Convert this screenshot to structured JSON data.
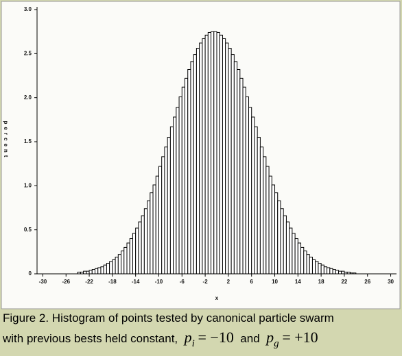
{
  "chart_data": {
    "type": "histogram",
    "xlabel": "x",
    "ylabel": "percent",
    "bins": [
      -24,
      -23.5,
      -23,
      -22.5,
      -22,
      -21.5,
      -21,
      -20.5,
      -20,
      -19.5,
      -19,
      -18.5,
      -18,
      -17.5,
      -17,
      -16.5,
      -16,
      -15.5,
      -15,
      -14.5,
      -14,
      -13.5,
      -13,
      -12.5,
      -12,
      -11.5,
      -11,
      -10.5,
      -10,
      -9.5,
      -9,
      -8.5,
      -8,
      -7.5,
      -7,
      -6.5,
      -6,
      -5.5,
      -5,
      -4.5,
      -4,
      -3.5,
      -3,
      -2.5,
      -2,
      -1.5,
      -1,
      -0.5,
      0,
      0.5,
      1,
      1.5,
      2,
      2.5,
      3,
      3.5,
      4,
      4.5,
      5,
      5.5,
      6,
      6.5,
      7,
      7.5,
      8,
      8.5,
      9,
      9.5,
      10,
      10.5,
      11,
      11.5,
      12,
      12.5,
      13,
      13.5,
      14,
      14.5,
      15,
      15.5,
      16,
      16.5,
      17,
      17.5,
      18,
      18.5,
      19,
      19.5,
      20,
      20.5,
      21,
      21.5,
      22,
      22.5,
      23,
      23.5,
      24
    ],
    "values": [
      0.02,
      0.02,
      0.03,
      0.03,
      0.04,
      0.05,
      0.06,
      0.07,
      0.08,
      0.1,
      0.12,
      0.14,
      0.16,
      0.19,
      0.22,
      0.26,
      0.3,
      0.35,
      0.4,
      0.46,
      0.52,
      0.59,
      0.66,
      0.74,
      0.83,
      0.92,
      1.01,
      1.11,
      1.22,
      1.33,
      1.44,
      1.55,
      1.67,
      1.78,
      1.89,
      2.01,
      2.12,
      2.22,
      2.32,
      2.41,
      2.49,
      2.56,
      2.62,
      2.67,
      2.71,
      2.74,
      2.75,
      2.75,
      2.74,
      2.71,
      2.67,
      2.62,
      2.56,
      2.49,
      2.41,
      2.32,
      2.22,
      2.12,
      2.01,
      1.89,
      1.78,
      1.67,
      1.55,
      1.44,
      1.33,
      1.22,
      1.11,
      1.01,
      0.92,
      0.83,
      0.74,
      0.66,
      0.59,
      0.52,
      0.46,
      0.4,
      0.35,
      0.3,
      0.26,
      0.22,
      0.19,
      0.16,
      0.14,
      0.12,
      0.1,
      0.08,
      0.07,
      0.06,
      0.05,
      0.04,
      0.03,
      0.03,
      0.02,
      0.02,
      0.01,
      0.01
    ],
    "color": "#ffffff",
    "xlim": [
      -31,
      31
    ],
    "xticks": [
      -30,
      -26,
      -22,
      -18,
      -14,
      -10,
      -6,
      -2,
      2,
      6,
      10,
      14,
      18,
      22,
      26,
      30
    ],
    "ylim": [
      0,
      3
    ],
    "yticks": [
      0,
      0.5,
      {
        "value": 1,
        "label": "1.0"
      },
      1.5,
      {
        "value": 2,
        "label": "2.0"
      },
      2.5,
      {
        "value": 3,
        "label": "3.0"
      }
    ]
  },
  "caption": {
    "line1": "Figure 2.  Histogram of points tested by canonical particle swarm",
    "line2": "with previous bests held constant,",
    "p_i": "p",
    "i": "i",
    "eq_i": "= −10",
    "and": "and",
    "p_g": "p",
    "g": "g",
    "eq_g": "= +10"
  }
}
